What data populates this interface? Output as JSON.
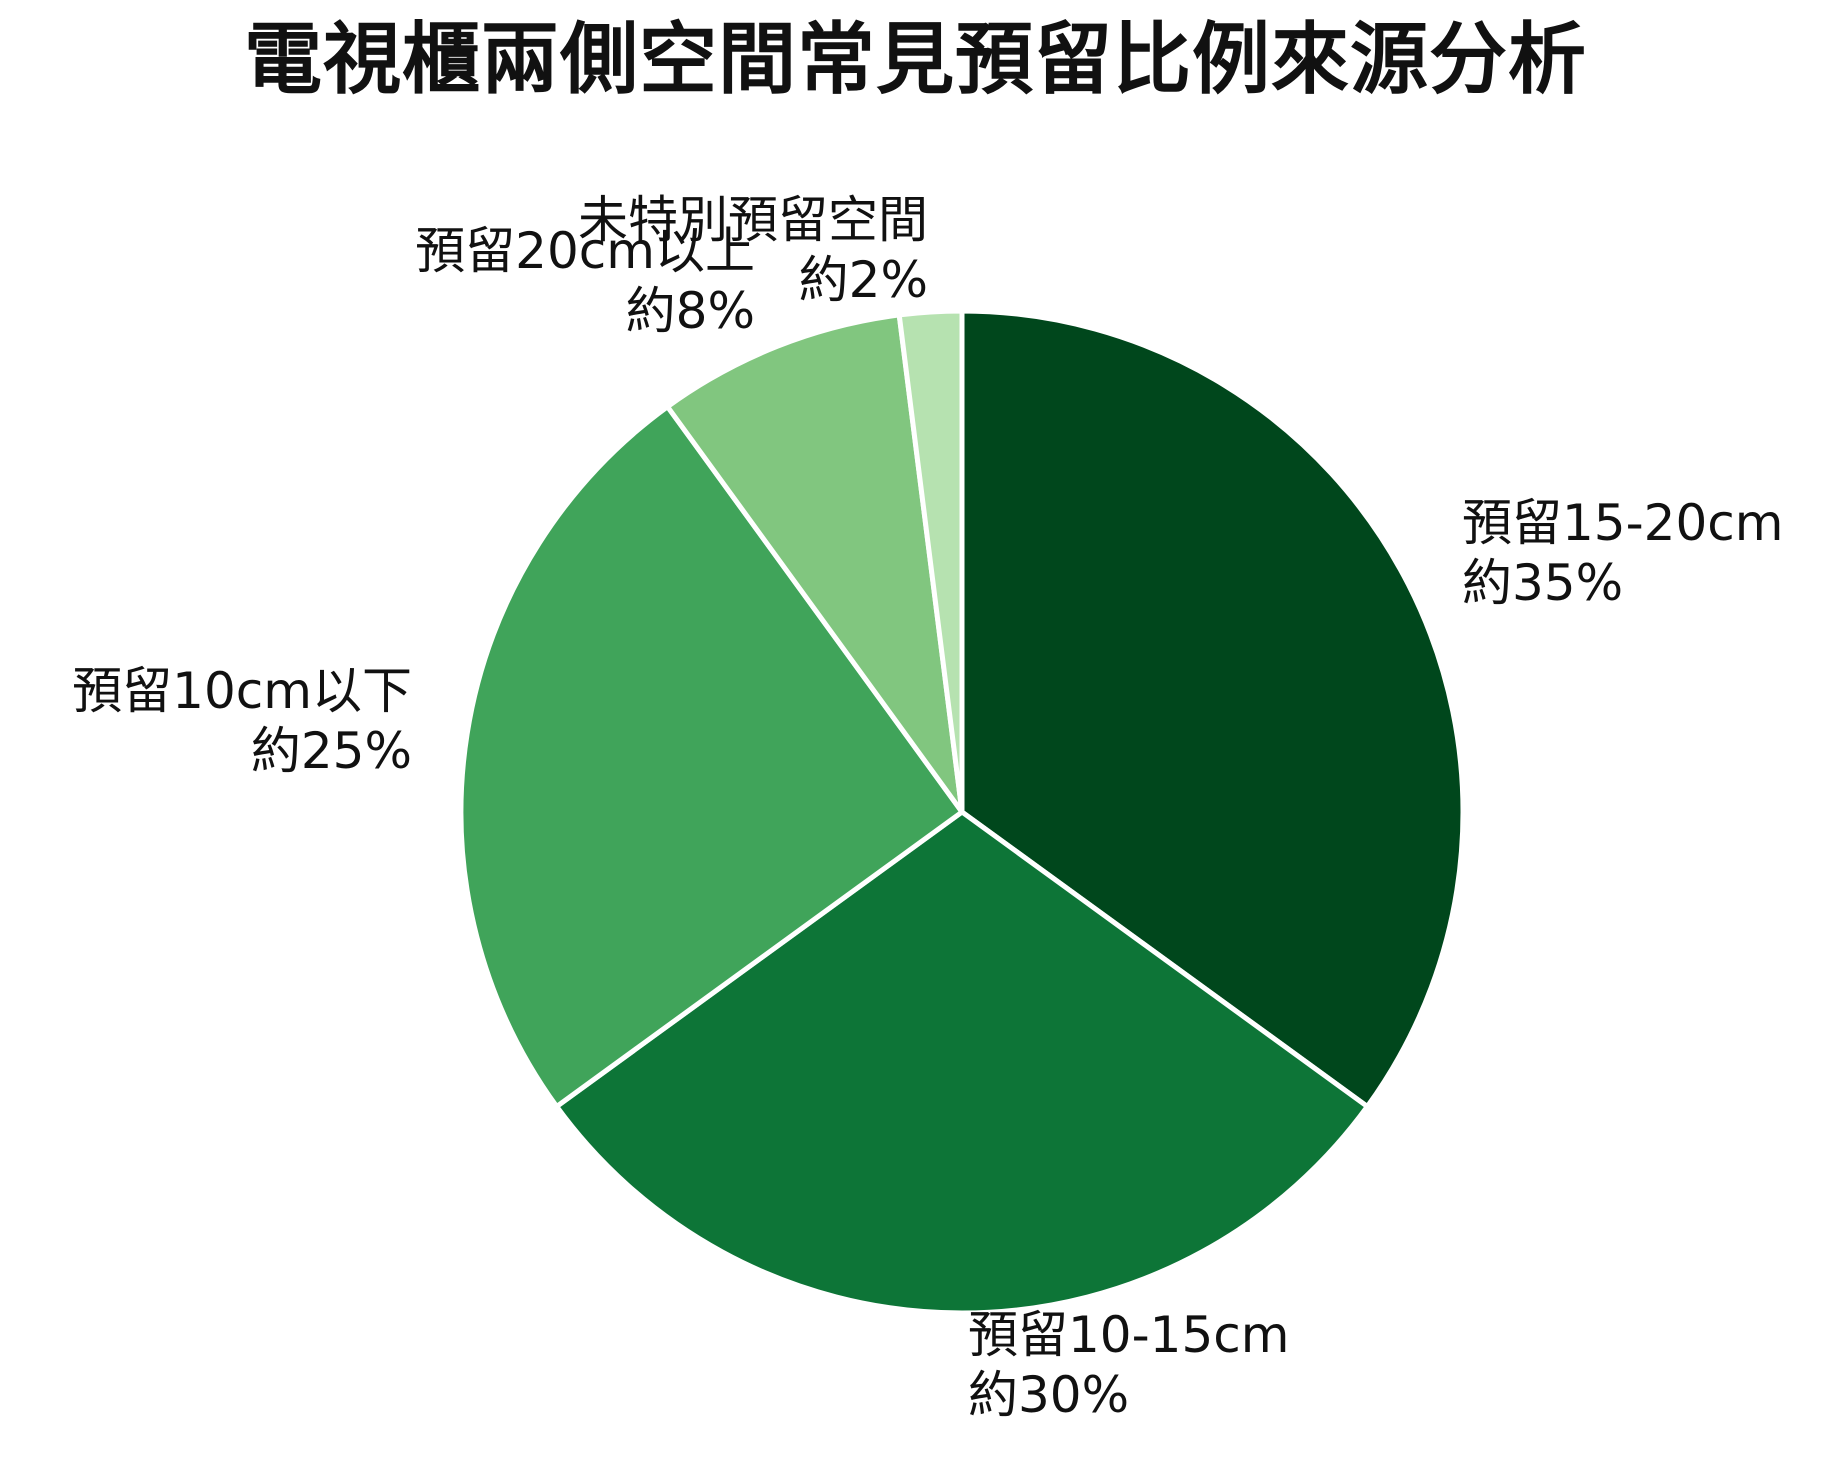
{
  "chart_data": {
    "type": "pie",
    "title": "電視櫃兩側空間常見預留比例來源分析",
    "start_angle_deg": 90,
    "direction": "clockwise",
    "slices": [
      {
        "label": "預留15-20cm",
        "value_text": "約35%",
        "value": 35,
        "color": "#00471c"
      },
      {
        "label": "預留10-15cm",
        "value_text": "約30%",
        "value": 30,
        "color": "#0d7537"
      },
      {
        "label": "預留10cm以下",
        "value_text": "約25%",
        "value": 25,
        "color": "#40a45a"
      },
      {
        "label": "預留20cm以上",
        "value_text": "約8%",
        "value": 8,
        "color": "#81c67f"
      },
      {
        "label": "未特別預留空間",
        "value_text": "約2%",
        "value": 2,
        "color": "#b6e2b0"
      }
    ]
  }
}
